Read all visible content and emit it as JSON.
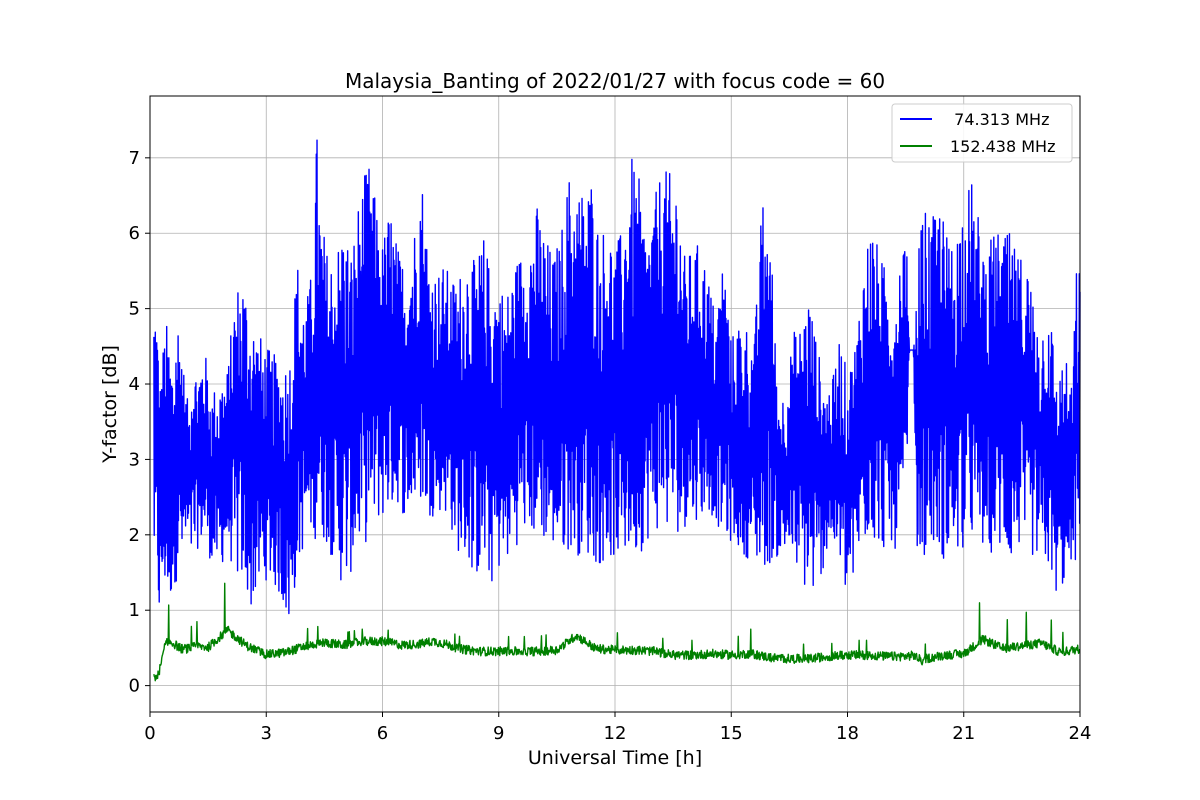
{
  "chart_data": {
    "type": "line",
    "title": "Malaysia_Banting of 2022/01/27 with focus code = 60",
    "xlabel": "Universal Time [h]",
    "ylabel": "Y-factor [dB]",
    "xlim": [
      0,
      24
    ],
    "ylim": [
      -0.35,
      7.82
    ],
    "xticks": [
      0,
      3,
      6,
      9,
      12,
      15,
      18,
      21,
      24
    ],
    "xtick_labels": [
      "0",
      "3",
      "6",
      "9",
      "12",
      "15",
      "18",
      "21",
      "24"
    ],
    "yticks": [
      0,
      1,
      2,
      3,
      4,
      5,
      6,
      7
    ],
    "ytick_labels": [
      "0",
      "1",
      "2",
      "3",
      "4",
      "5",
      "6",
      "7"
    ],
    "grid": true,
    "legend_position": "top-right",
    "series": [
      {
        "name": "  74.313 MHz",
        "color": "#0000ff",
        "x": [
          0.1,
          0.15,
          0.2,
          0.25,
          0.3,
          0.4,
          0.5,
          0.6,
          0.7,
          0.8,
          0.9,
          1.0,
          1.1,
          1.2,
          1.4,
          1.6,
          1.8,
          2.0,
          2.2,
          2.4,
          2.6,
          2.8,
          3.0,
          3.2,
          3.4,
          3.6,
          3.8,
          4.0,
          4.2,
          4.3,
          4.4,
          4.6,
          4.8,
          5.0,
          5.2,
          5.4,
          5.6,
          5.7,
          5.8,
          6.0,
          6.2,
          6.4,
          6.6,
          6.8,
          7.0,
          7.2,
          7.4,
          7.6,
          7.8,
          8.0,
          8.2,
          8.4,
          8.6,
          8.8,
          9.0,
          9.2,
          9.4,
          9.6,
          9.8,
          10.0,
          10.2,
          10.4,
          10.6,
          10.8,
          11.0,
          11.2,
          11.4,
          11.6,
          11.8,
          12.0,
          12.2,
          12.4,
          12.6,
          12.8,
          13.0,
          13.2,
          13.4,
          13.6,
          13.8,
          14.0,
          14.2,
          14.4,
          14.6,
          14.8,
          15.0,
          15.2,
          15.4,
          15.6,
          15.8,
          16.0,
          16.2,
          16.4,
          16.6,
          16.8,
          17.0,
          17.2,
          17.4,
          17.6,
          17.8,
          18.0,
          18.2,
          18.4,
          18.6,
          18.8,
          19.0,
          19.2,
          19.4,
          19.5,
          19.6,
          19.65,
          19.7,
          19.8,
          19.85,
          19.95,
          20.0,
          20.2,
          20.4,
          20.6,
          20.8,
          21.0,
          21.2,
          21.4,
          21.6,
          21.8,
          22.0,
          22.2,
          22.4,
          22.6,
          22.8,
          23.0,
          23.2,
          23.4,
          23.6,
          23.8,
          23.9,
          24.0
        ],
        "y_min": [
          1.5,
          1.4,
          1.2,
          0.6,
          1.1,
          1.2,
          1.0,
          1.3,
          1.4,
          1.5,
          1.7,
          1.8,
          1.5,
          1.8,
          1.9,
          1.6,
          1.5,
          1.8,
          1.4,
          1.3,
          1.0,
          1.2,
          1.4,
          1.3,
          1.1,
          0.7,
          1.5,
          1.9,
          2.0,
          1.9,
          2.0,
          1.8,
          1.6,
          1.2,
          1.5,
          1.8,
          1.9,
          2.0,
          2.1,
          2.2,
          2.3,
          2.4,
          2.2,
          2.3,
          2.4,
          2.2,
          2.3,
          2.3,
          2.0,
          1.7,
          1.6,
          1.4,
          1.5,
          1.3,
          1.5,
          1.6,
          1.8,
          2.0,
          2.0,
          1.9,
          1.9,
          1.8,
          1.7,
          1.8,
          1.7,
          1.8,
          1.6,
          1.6,
          1.6,
          1.7,
          1.6,
          1.7,
          1.7,
          1.9,
          2.0,
          2.1,
          2.0,
          2.0,
          2.1,
          2.2,
          2.2,
          2.3,
          2.2,
          1.9,
          1.9,
          1.8,
          1.7,
          1.6,
          1.5,
          1.6,
          1.7,
          1.7,
          1.6,
          1.4,
          1.1,
          1.2,
          1.6,
          1.9,
          1.5,
          1.1,
          1.4,
          1.8,
          2.0,
          1.8,
          1.8,
          1.8,
          1.8,
          1.9,
          4.45,
          4.45,
          4.45,
          1.6,
          1.7,
          1.8,
          1.7,
          1.8,
          1.7,
          1.6,
          1.7,
          1.7,
          1.9,
          1.8,
          1.7,
          1.8,
          1.7,
          1.6,
          1.8,
          1.7,
          1.7,
          1.6,
          1.5,
          1.2,
          1.3,
          1.7,
          1.5,
          1.7
        ],
        "y_max": [
          5.2,
          5.25,
          4.8,
          4.0,
          4.3,
          4.9,
          4.6,
          4.3,
          5.0,
          4.8,
          4.0,
          3.7,
          4.5,
          4.2,
          4.5,
          3.9,
          4.1,
          4.2,
          5.3,
          5.5,
          5.0,
          4.7,
          4.5,
          4.4,
          4.3,
          4.4,
          5.7,
          5.0,
          5.6,
          7.45,
          6.3,
          5.7,
          5.8,
          6.2,
          5.8,
          6.5,
          6.9,
          6.95,
          6.5,
          5.9,
          6.4,
          5.8,
          5.6,
          6.0,
          6.9,
          5.7,
          5.5,
          5.6,
          5.4,
          5.5,
          5.8,
          5.6,
          6.0,
          5.5,
          5.4,
          5.2,
          5.6,
          5.8,
          6.0,
          6.4,
          6.0,
          5.7,
          6.0,
          6.8,
          6.7,
          6.6,
          6.8,
          6.0,
          6.2,
          5.8,
          6.1,
          7.05,
          6.8,
          6.0,
          6.4,
          6.9,
          6.8,
          6.8,
          5.7,
          5.8,
          5.9,
          5.5,
          4.9,
          5.8,
          4.6,
          4.9,
          4.8,
          4.6,
          6.5,
          6.2,
          3.9,
          3.9,
          4.7,
          4.8,
          5.3,
          4.6,
          4.0,
          4.0,
          4.7,
          4.1,
          4.6,
          5.6,
          6.2,
          5.8,
          5.5,
          5.2,
          6.0,
          6.4,
          4.45,
          4.45,
          4.45,
          5.2,
          6.05,
          6.2,
          6.3,
          6.2,
          6.5,
          5.9,
          6.1,
          6.6,
          6.7,
          6.2,
          5.8,
          6.05,
          6.0,
          6.0,
          5.7,
          5.8,
          5.2,
          4.8,
          5.2,
          4.1,
          4.4,
          4.0,
          5.5,
          5.7
        ]
      },
      {
        "name": "152.438 MHz",
        "color": "#008000",
        "x": [
          0.1,
          0.2,
          0.3,
          0.4,
          0.6,
          0.8,
          1.0,
          1.2,
          1.5,
          2.0,
          2.5,
          3.0,
          3.5,
          4.0,
          4.5,
          5.0,
          5.5,
          6.0,
          6.5,
          7.0,
          7.3,
          7.6,
          8.0,
          8.5,
          9.0,
          9.5,
          10.0,
          10.5,
          11.0,
          11.5,
          12.0,
          12.5,
          13.0,
          13.5,
          14.0,
          14.5,
          15.0,
          15.5,
          16.0,
          16.5,
          17.0,
          17.5,
          18.0,
          18.5,
          19.0,
          19.5,
          19.7,
          19.95,
          20.0,
          20.5,
          21.0,
          21.5,
          22.0,
          22.5,
          23.0,
          23.5,
          24.0
        ],
        "y_min": [
          0.05,
          0.0,
          0.05,
          0.3,
          0.35,
          0.35,
          0.35,
          0.35,
          0.35,
          0.35,
          0.3,
          0.15,
          0.3,
          0.4,
          0.45,
          0.45,
          0.5,
          0.5,
          0.45,
          0.45,
          0.45,
          0.45,
          0.4,
          0.35,
          0.35,
          0.35,
          0.35,
          0.35,
          0.35,
          0.35,
          0.35,
          0.35,
          0.35,
          0.3,
          0.3,
          0.3,
          0.3,
          0.25,
          0.25,
          0.25,
          0.25,
          0.3,
          0.3,
          0.3,
          0.3,
          0.3,
          0.35,
          0.25,
          0.25,
          0.3,
          0.3,
          0.3,
          0.3,
          0.3,
          0.3,
          0.3,
          0.35
        ],
        "y_max": [
          0.2,
          0.35,
          0.8,
          1.15,
          0.95,
          0.75,
          0.75,
          0.85,
          0.8,
          1.45,
          0.95,
          0.9,
          0.7,
          0.75,
          0.8,
          0.7,
          0.75,
          0.75,
          0.7,
          0.75,
          0.85,
          0.75,
          0.65,
          0.65,
          0.65,
          0.65,
          0.65,
          0.7,
          1.25,
          0.75,
          0.7,
          0.7,
          0.65,
          0.6,
          0.6,
          0.65,
          0.6,
          0.75,
          0.6,
          0.55,
          0.55,
          0.55,
          0.6,
          0.6,
          0.55,
          0.55,
          0.5,
          0.45,
          0.55,
          0.6,
          0.65,
          1.2,
          0.85,
          0.95,
          1.05,
          0.7,
          0.75
        ]
      }
    ]
  }
}
